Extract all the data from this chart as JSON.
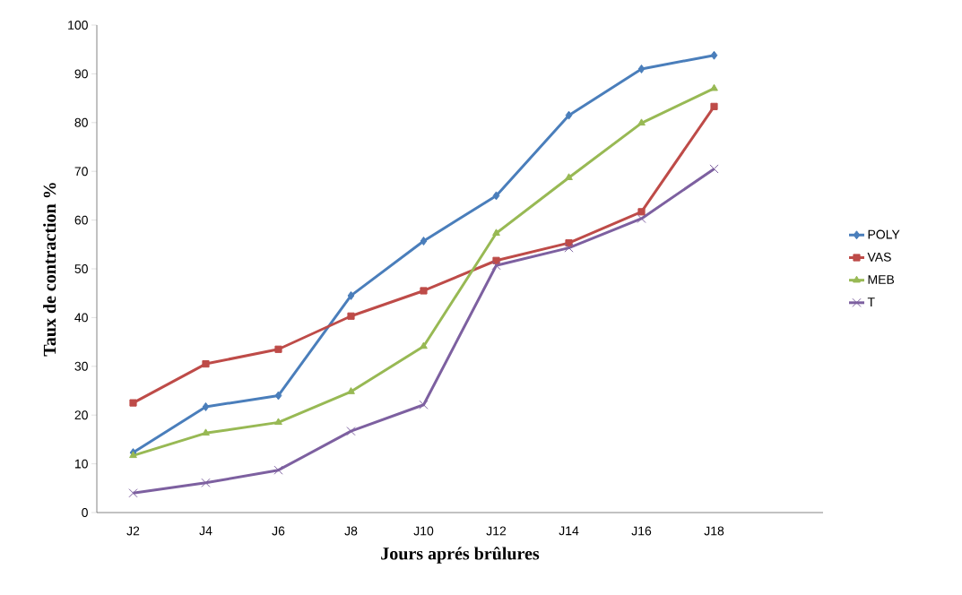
{
  "chart_data": {
    "type": "line",
    "xlabel": "Jours aprés brûlures",
    "ylabel": "Taux de contraction %",
    "categories": [
      "J2",
      "J4",
      "J6",
      "J8",
      "J10",
      "J12",
      "J14",
      "J16",
      "J18"
    ],
    "ylim": [
      0,
      100
    ],
    "yticks": [
      0,
      10,
      20,
      30,
      40,
      50,
      60,
      70,
      80,
      90,
      100
    ],
    "grid": false,
    "legend": "right",
    "series": [
      {
        "name": "POLY",
        "color": "#4a7ebb",
        "marker": "diamond",
        "values": [
          12.3,
          21.7,
          24,
          44.5,
          55.7,
          65,
          81.5,
          91,
          93.8
        ]
      },
      {
        "name": "VAS",
        "color": "#be4b48",
        "marker": "square",
        "values": [
          22.5,
          30.5,
          33.5,
          40.3,
          45.5,
          51.7,
          55.3,
          61.7,
          83.3
        ]
      },
      {
        "name": "MEB",
        "color": "#98b954",
        "marker": "triangle",
        "values": [
          11.7,
          16.3,
          18.5,
          24.8,
          34.1,
          57.3,
          68.7,
          79.9,
          87
        ]
      },
      {
        "name": "T",
        "color": "#7d60a0",
        "marker": "cross",
        "values": [
          4,
          6.1,
          8.7,
          16.7,
          22.1,
          50.7,
          54.3,
          60.3,
          70.5
        ]
      }
    ]
  }
}
